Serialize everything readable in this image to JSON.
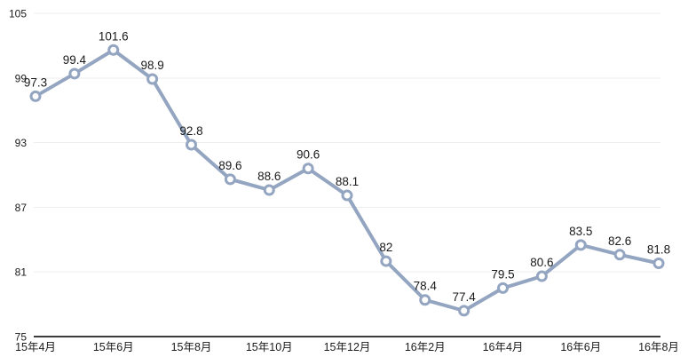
{
  "chart_data": {
    "type": "line",
    "title": "",
    "xlabel": "",
    "ylabel": "",
    "categories_shown": [
      "15年4月",
      "15年6月",
      "15年8月",
      "15年10月",
      "15年12月",
      "16年2月",
      "16年4月",
      "16年6月",
      "16年8月"
    ],
    "x_tick_step": 2,
    "values": [
      97.3,
      99.4,
      101.6,
      98.9,
      92.8,
      89.6,
      88.6,
      90.6,
      88.1,
      82,
      78.4,
      77.4,
      79.5,
      80.6,
      83.5,
      82.6,
      81.8
    ],
    "point_labels": [
      "97.3",
      "99.4",
      "101.6",
      "98.9",
      "92.8",
      "89.6",
      "88.6",
      "90.6",
      "88.1",
      "82",
      "78.4",
      "77.4",
      "79.5",
      "80.6",
      "83.5",
      "82.6",
      "81.8"
    ],
    "y_ticks": [
      105,
      99,
      93,
      87,
      81,
      75
    ],
    "ylim": [
      75,
      105
    ],
    "grid": "horizontal",
    "legend": "none",
    "colors": {
      "line": "#93A5C0",
      "marker_fill": "#FFFFFF",
      "marker_stroke": "#93A5C0",
      "gridline": "#EDEDED",
      "axis": "#3C3C3C",
      "tick_text": "#1B1B1B",
      "label_text": "#1A1A1A",
      "background": "#FFFFFF"
    }
  }
}
